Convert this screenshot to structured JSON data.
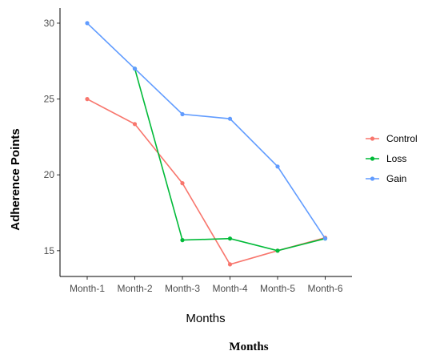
{
  "chart_data": {
    "type": "line",
    "categories": [
      "Month-1",
      "Month-2",
      "Month-3",
      "Month-4",
      "Month-5",
      "Month-6"
    ],
    "series": [
      {
        "name": "Control",
        "color": "#F8766D",
        "values": [
          25.0,
          23.35,
          19.45,
          14.1,
          15.0,
          15.85
        ]
      },
      {
        "name": "Loss",
        "color": "#00BA38",
        "values": [
          null,
          27.0,
          15.7,
          15.8,
          15.0,
          15.8
        ]
      },
      {
        "name": "Gain",
        "color": "#619CFF",
        "values": [
          30.0,
          27.0,
          24.0,
          23.7,
          20.55,
          15.8
        ]
      }
    ],
    "xlabel": "Months",
    "ylabel": "Adherence Points",
    "yticks": [
      15,
      20,
      25,
      30
    ],
    "ylim": [
      13.3,
      31.0
    ],
    "legend_position": "right",
    "grid": false
  },
  "caption": "Months"
}
